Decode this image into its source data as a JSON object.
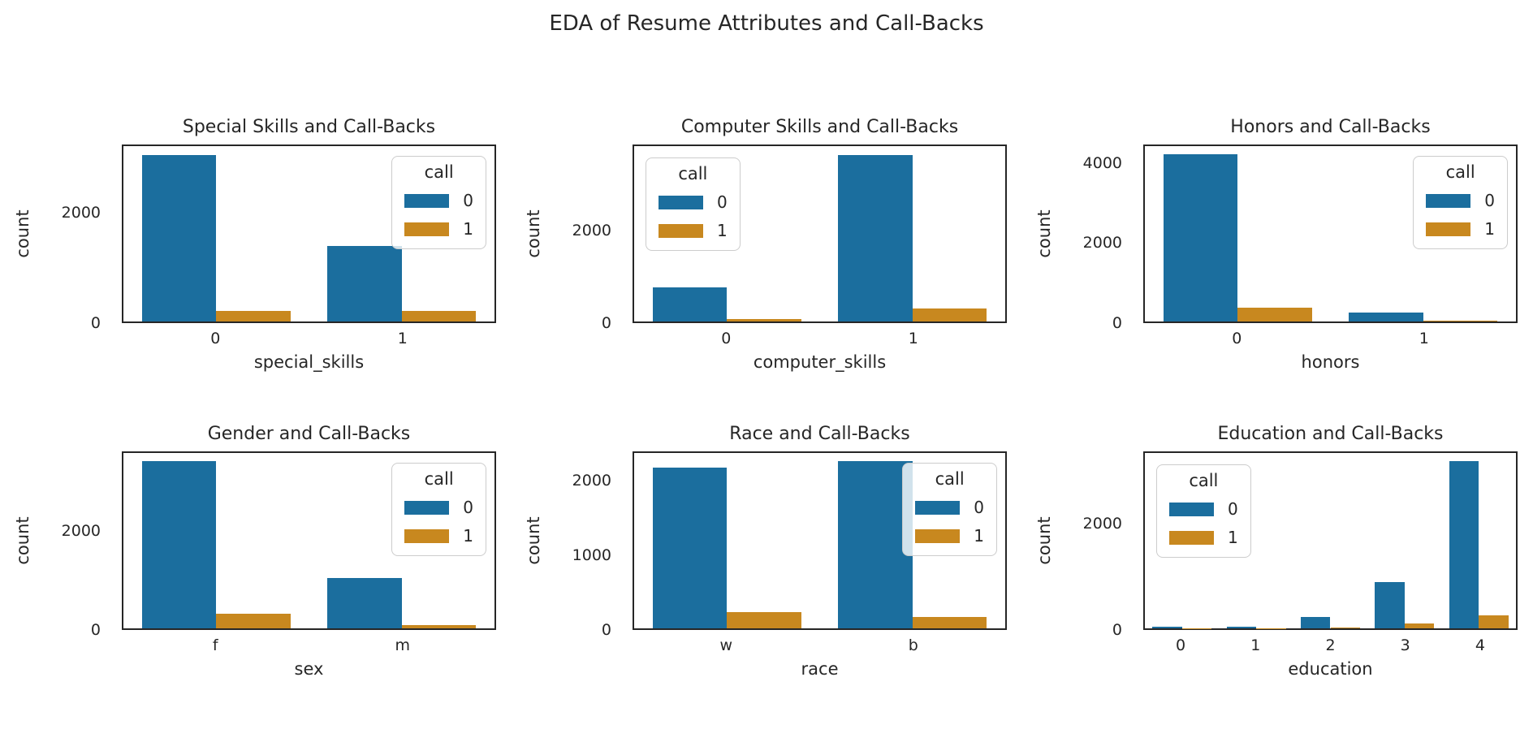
{
  "figure": {
    "title": "EDA of Resume Attributes and Call-Backs"
  },
  "style": {
    "blue": "#1b6e9e",
    "orange": "#c8881f",
    "text_color": "#262626",
    "spine_color": "#262626"
  },
  "chart_data": [
    {
      "type": "bar",
      "title": "Special Skills and Call-Backs",
      "xlabel": "special_skills",
      "ylabel": "count",
      "categories": [
        "0",
        "1"
      ],
      "hue_title": "call",
      "series": [
        {
          "name": "0",
          "color_key": "blue",
          "values": [
            3080,
            1400
          ]
        },
        {
          "name": "1",
          "color_key": "orange",
          "values": [
            200,
            195
          ]
        }
      ],
      "ylim": [
        0,
        3240
      ],
      "ytick_values": [
        0,
        2000
      ],
      "ytick_labels": [
        "0",
        "2000"
      ],
      "grid": false,
      "legend_position": "top-right"
    },
    {
      "type": "bar",
      "title": "Computer Skills and Call-Backs",
      "xlabel": "computer_skills",
      "ylabel": "count",
      "categories": [
        "0",
        "1"
      ],
      "hue_title": "call",
      "series": [
        {
          "name": "0",
          "color_key": "blue",
          "values": [
            750,
            3660
          ]
        },
        {
          "name": "1",
          "color_key": "orange",
          "values": [
            60,
            280
          ]
        }
      ],
      "ylim": [
        0,
        3850
      ],
      "ytick_values": [
        0,
        2000
      ],
      "ytick_labels": [
        "0",
        "2000"
      ],
      "grid": false,
      "legend_position": "top-left"
    },
    {
      "type": "bar",
      "title": "Honors and Call-Backs",
      "xlabel": "honors",
      "ylabel": "count",
      "categories": [
        "0",
        "1"
      ],
      "hue_title": "call",
      "series": [
        {
          "name": "0",
          "color_key": "blue",
          "values": [
            4250,
            220
          ]
        },
        {
          "name": "1",
          "color_key": "orange",
          "values": [
            350,
            30
          ]
        }
      ],
      "ylim": [
        0,
        4465
      ],
      "ytick_values": [
        0,
        2000,
        4000
      ],
      "ytick_labels": [
        "0",
        "2000",
        "4000"
      ],
      "grid": false,
      "legend_position": "top-right"
    },
    {
      "type": "bar",
      "title": "Gender and Call-Backs",
      "xlabel": "sex",
      "ylabel": "count",
      "categories": [
        "f",
        "m"
      ],
      "hue_title": "call",
      "series": [
        {
          "name": "0",
          "color_key": "blue",
          "values": [
            3440,
            1040
          ]
        },
        {
          "name": "1",
          "color_key": "orange",
          "values": [
            300,
            70
          ]
        }
      ],
      "ylim": [
        0,
        3615
      ],
      "ytick_values": [
        0,
        2000
      ],
      "ytick_labels": [
        "0",
        "2000"
      ],
      "grid": false,
      "legend_position": "top-right"
    },
    {
      "type": "bar",
      "title": "Race and Call-Backs",
      "xlabel": "race",
      "ylabel": "count",
      "categories": [
        "w",
        "b"
      ],
      "hue_title": "call",
      "series": [
        {
          "name": "0",
          "color_key": "blue",
          "values": [
            2200,
            2280
          ]
        },
        {
          "name": "1",
          "color_key": "orange",
          "values": [
            225,
            160
          ]
        }
      ],
      "ylim": [
        0,
        2395
      ],
      "ytick_values": [
        0,
        1000,
        2000
      ],
      "ytick_labels": [
        "0",
        "1000",
        "2000"
      ],
      "grid": false,
      "legend_position": "top-right"
    },
    {
      "type": "bar",
      "title": "Education and Call-Backs",
      "xlabel": "education",
      "ylabel": "count",
      "categories": [
        "0",
        "1",
        "2",
        "3",
        "4"
      ],
      "hue_title": "call",
      "series": [
        {
          "name": "0",
          "color_key": "blue",
          "values": [
            35,
            30,
            210,
            880,
            3190
          ]
        },
        {
          "name": "1",
          "color_key": "orange",
          "values": [
            5,
            5,
            15,
            90,
            245
          ]
        }
      ],
      "ylim": [
        0,
        3350
      ],
      "ytick_values": [
        0,
        2000
      ],
      "ytick_labels": [
        "0",
        "2000"
      ],
      "grid": false,
      "legend_position": "top-left"
    }
  ]
}
